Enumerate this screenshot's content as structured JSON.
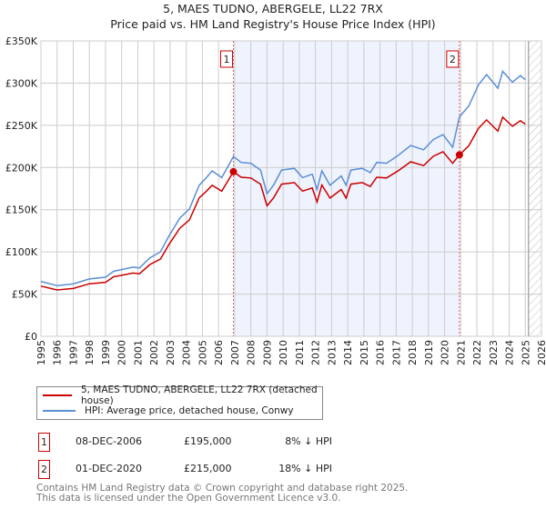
{
  "chart_data": {
    "type": "line",
    "title": "5, MAES TUDNO, ABERGELE, LL22 7RX",
    "subtitle": "Price paid vs. HM Land Registry's House Price Index (HPI)",
    "xlim": [
      1995,
      2026
    ],
    "ylim": [
      0,
      350000
    ],
    "x_ticks": [
      "1995",
      "1996",
      "1997",
      "1998",
      "1999",
      "2000",
      "2001",
      "2002",
      "2003",
      "2004",
      "2005",
      "2006",
      "2007",
      "2008",
      "2009",
      "2010",
      "2011",
      "2012",
      "2013",
      "2014",
      "2015",
      "2016",
      "2017",
      "2018",
      "2019",
      "2020",
      "2021",
      "2022",
      "2023",
      "2024",
      "2025",
      "2026"
    ],
    "y_ticks": [
      {
        "v": 0,
        "l": "£0"
      },
      {
        "v": 50000,
        "l": "£50K"
      },
      {
        "v": 100000,
        "l": "£100K"
      },
      {
        "v": 150000,
        "l": "£150K"
      },
      {
        "v": 200000,
        "l": "£200K"
      },
      {
        "v": 250000,
        "l": "£250K"
      },
      {
        "v": 300000,
        "l": "£300K"
      },
      {
        "v": 350000,
        "l": "£350K"
      }
    ],
    "grid": true,
    "shaded_range": [
      2006.92,
      2020.92
    ],
    "forecast_hatch_from": 2025.2,
    "x": [
      1995.0,
      1996,
      1997,
      1998,
      1999,
      1999.5,
      2000,
      2000.7,
      2001.1,
      2001.75,
      2002.4,
      2002.9,
      2003.6,
      2004.2,
      2004.8,
      2005.2,
      2005.6,
      2006.2,
      2006.92,
      2007.4,
      2008.0,
      2008.6,
      2009.0,
      2009.4,
      2009.9,
      2010.7,
      2011.2,
      2011.8,
      2012.1,
      2012.4,
      2012.9,
      2013.6,
      2013.9,
      2014.2,
      2014.9,
      2015.4,
      2015.8,
      2016.4,
      2017.1,
      2017.9,
      2018.7,
      2019.3,
      2019.9,
      2020.5,
      2020.92,
      2021.5,
      2022.1,
      2022.6,
      2023.3,
      2023.6,
      2024.2,
      2024.7,
      2025.0
    ],
    "series": [
      {
        "name": "5, MAES TUDNO, ABERGELE, LL22 7RX (detached house)",
        "color": "#cc0000",
        "values": [
          59500,
          54900,
          56700,
          62200,
          64000,
          70500,
          72300,
          75000,
          74100,
          85100,
          91500,
          108000,
          128000,
          138000,
          164000,
          171000,
          179000,
          172000,
          195000,
          188500,
          187600,
          180300,
          154600,
          163800,
          180300,
          182100,
          172000,
          175700,
          159200,
          179300,
          163800,
          173900,
          163800,
          180300,
          182100,
          177500,
          188500,
          187600,
          195800,
          206800,
          202200,
          213200,
          218700,
          205000,
          215000,
          225800,
          246400,
          256400,
          243100,
          259700,
          248900,
          255500,
          251400
        ]
      },
      {
        "name": "HPI: Average price, detached house, Conwy",
        "color": "#5b8fd4",
        "values": [
          65000,
          60000,
          62000,
          68000,
          70000,
          77000,
          79000,
          82000,
          81000,
          93000,
          100000,
          118000,
          140000,
          151000,
          179000,
          187000,
          196000,
          188000,
          213000,
          206000,
          205000,
          197000,
          169000,
          179000,
          197000,
          199000,
          188000,
          192000,
          174000,
          196000,
          179000,
          190000,
          179000,
          197000,
          199000,
          194000,
          206000,
          205000,
          214000,
          226000,
          221000,
          233000,
          239000,
          224000,
          260000,
          273000,
          298000,
          310000,
          294000,
          314000,
          301000,
          309000,
          304000
        ]
      }
    ],
    "annotations": [
      {
        "label": "1",
        "x": 2006.92,
        "y": 195000
      },
      {
        "label": "2",
        "x": 2020.92,
        "y": 215000
      }
    ]
  },
  "legend": {
    "items": [
      "5, MAES TUDNO, ABERGELE, LL22 7RX (detached house)",
      "HPI: Average price, detached house, Conwy"
    ]
  },
  "table": [
    {
      "num": "1",
      "date": "08-DEC-2006",
      "price": "£195,000",
      "hpi": "8% ↓ HPI"
    },
    {
      "num": "2",
      "date": "01-DEC-2020",
      "price": "£215,000",
      "hpi": "18% ↓ HPI"
    }
  ],
  "footer": {
    "line1": "Contains HM Land Registry data © Crown copyright and database right 2025.",
    "line2": "This data is licensed under the Open Government Licence v3.0."
  }
}
